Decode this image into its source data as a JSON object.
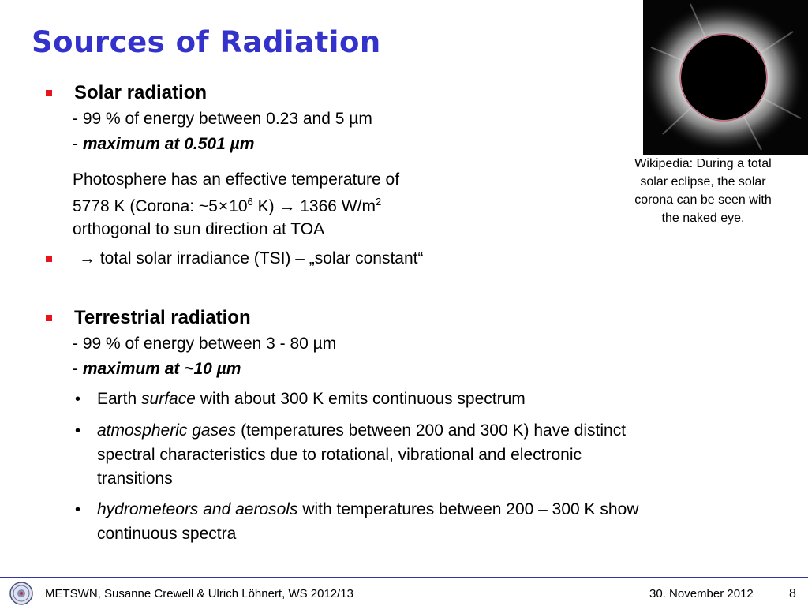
{
  "slide": {
    "title": "Sources of Radiation",
    "solar": {
      "heading": "Solar radiation",
      "line1": "- 99 % of energy between 0.23 and 5 µm",
      "line2_prefix": "- ",
      "line2_emph": "maximum at 0.501 µm",
      "photo_line1": "Photosphere has an effective temperature of",
      "photo_line2_a": "5778 K (Corona: ~5",
      "photo_times": "×",
      "photo_ten": "10",
      "photo_exp6": "6",
      "photo_line2_b": " K) ",
      "arrow": "→",
      "photo_line2_c": " 1366 W/m",
      "photo_exp2": "2",
      "photo_line3": "orthogonal to sun direction at TOA",
      "tsi_text": " total solar irradiance (TSI) – „solar constant“"
    },
    "terrestrial": {
      "heading": "Terrestrial radiation",
      "line1": "- 99 % of energy between 3 - 80 µm",
      "line2_prefix": "- ",
      "line2_emph": "maximum at ~10 µm",
      "bullet_glyph": "•",
      "b1_pre": "Earth ",
      "b1_em": "surface",
      "b1_post": " with about 300 K emits continuous spectrum",
      "b2_em": "atmospheric gases",
      "b2_l1": " (temperatures between 200 and 300 K) have distinct",
      "b2_l2": "spectral characteristics due to rotational, vibrational and electronic",
      "b2_l3": "transitions",
      "b3_em": "hydrometeors and aerosols",
      "b3_l1": " with temperatures between 200 – 300 K show",
      "b3_l2": "continuous spectra"
    },
    "image": {
      "caption_l1": "Wikipedia: During a total",
      "caption_l2": "solar eclipse, the solar",
      "caption_l3": "corona can be seen with",
      "caption_l4": "the naked eye."
    },
    "footer": {
      "course": "METSWN, Susanne Crewell & Ulrich Löhnert,  WS 2012/13",
      "date": "30. November 2012",
      "page": "8"
    }
  },
  "colors": {
    "title": "#3333cc",
    "bullet": "#e8141c",
    "footer_line": "#3333aa"
  },
  "icons": {
    "bullet": "red-square-bullet",
    "arrow": "right-arrow-icon",
    "logo": "university-seal-logo"
  }
}
